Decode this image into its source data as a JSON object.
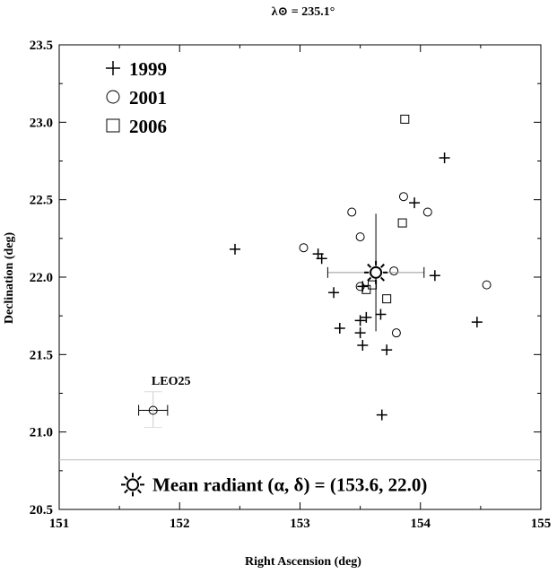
{
  "chart_data": {
    "type": "scatter",
    "title": "λ⊙ = 235.1°",
    "xlabel": "Right Ascension (deg)",
    "ylabel": "Declination (deg)",
    "xlim": [
      151,
      155
    ],
    "ylim": [
      20.5,
      23.5
    ],
    "xticks": [
      "151",
      "152",
      "153",
      "154",
      "155"
    ],
    "yticks": [
      "20.5",
      "21.0",
      "21.5",
      "22.0",
      "22.5",
      "23.0",
      "23.5"
    ],
    "grid": false,
    "legend_position": "top-left",
    "series": [
      {
        "name": "1999",
        "marker": "plus",
        "points": [
          [
            152.46,
            22.18
          ],
          [
            153.15,
            22.15
          ],
          [
            153.18,
            22.12
          ],
          [
            153.28,
            21.9
          ],
          [
            153.33,
            21.67
          ],
          [
            153.5,
            21.72
          ],
          [
            153.5,
            21.64
          ],
          [
            153.52,
            21.56
          ],
          [
            153.55,
            21.74
          ],
          [
            153.52,
            21.94
          ],
          [
            153.67,
            21.76
          ],
          [
            153.72,
            21.53
          ],
          [
            153.68,
            21.11
          ],
          [
            153.95,
            22.48
          ],
          [
            154.12,
            22.01
          ],
          [
            154.2,
            22.77
          ],
          [
            154.47,
            21.71
          ]
        ]
      },
      {
        "name": "2001",
        "marker": "circle",
        "points": [
          [
            153.03,
            22.19
          ],
          [
            153.43,
            22.42
          ],
          [
            153.5,
            22.26
          ],
          [
            153.5,
            21.94
          ],
          [
            153.78,
            22.04
          ],
          [
            153.8,
            21.64
          ],
          [
            153.86,
            22.52
          ],
          [
            154.06,
            22.42
          ],
          [
            154.55,
            21.95
          ]
        ]
      },
      {
        "name": "2006",
        "marker": "square",
        "points": [
          [
            153.87,
            23.02
          ],
          [
            153.85,
            22.35
          ],
          [
            153.72,
            21.86
          ],
          [
            153.55,
            21.92
          ],
          [
            153.6,
            21.95
          ]
        ]
      }
    ],
    "mean_radiant": {
      "ra": 153.63,
      "dec": 22.03,
      "ra_error": [
        153.23,
        154.03
      ],
      "dec_error": [
        21.65,
        22.41
      ]
    },
    "leo25": {
      "label": "LEO25",
      "ra": 151.78,
      "dec": 21.14,
      "ra_error": [
        151.66,
        151.9
      ],
      "dec_error": [
        21.03,
        21.26
      ]
    },
    "separator_dec": 20.82,
    "annotation": "Mean radiant (α, δ) = (153.6, 22.0)"
  }
}
